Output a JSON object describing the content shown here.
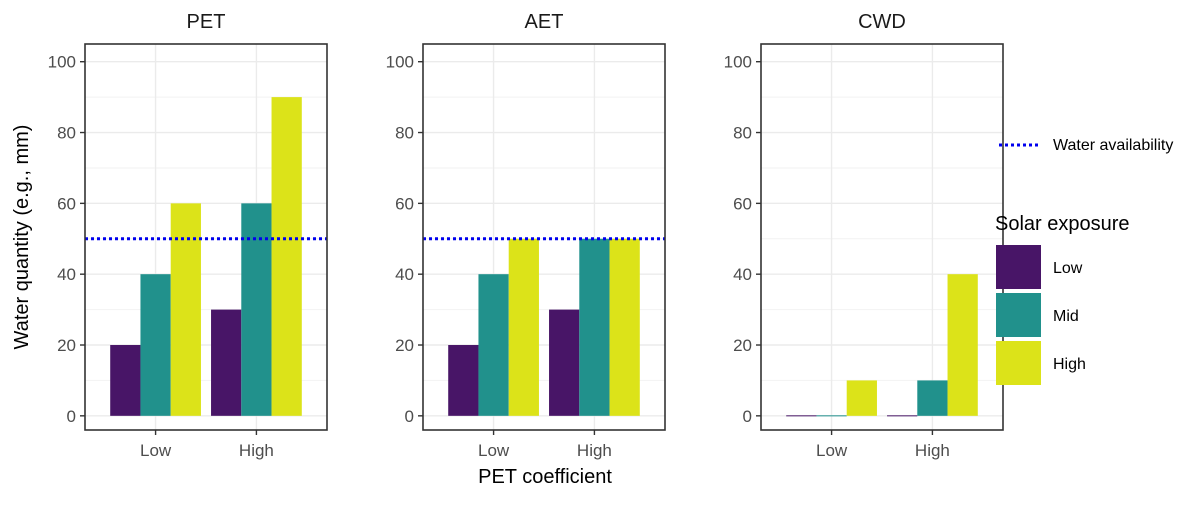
{
  "chart_data": {
    "type": "bar",
    "xlabel": "PET coefficient",
    "ylabel": "Water quantity (e.g., mm)",
    "ylim": [
      -4,
      105
    ],
    "yticks": [
      0,
      20,
      40,
      60,
      80,
      100
    ],
    "categories": [
      "Low",
      "High"
    ],
    "grid": true,
    "legend_placement": "right",
    "series_colors": [
      "#481567",
      "#21918C",
      "#DCE319"
    ],
    "reference_line": {
      "name": "Water availability",
      "value": 50,
      "color": "#0000EE",
      "style": "dotted"
    },
    "legend": {
      "line_label": "Water availability",
      "fill_title": "Solar exposure",
      "fill_entries": [
        "Low",
        "Mid",
        "High"
      ]
    },
    "panels": [
      {
        "title": "PET",
        "show_reference": true,
        "series": [
          {
            "name": "Low",
            "values": [
              20,
              30
            ]
          },
          {
            "name": "Mid",
            "values": [
              40,
              60
            ]
          },
          {
            "name": "High",
            "values": [
              60,
              90
            ]
          }
        ]
      },
      {
        "title": "AET",
        "show_reference": true,
        "series": [
          {
            "name": "Low",
            "values": [
              20,
              30
            ]
          },
          {
            "name": "Mid",
            "values": [
              40,
              50
            ]
          },
          {
            "name": "High",
            "values": [
              50,
              50
            ]
          }
        ]
      },
      {
        "title": "CWD",
        "show_reference": false,
        "series": [
          {
            "name": "Low",
            "values": [
              0,
              0
            ]
          },
          {
            "name": "Mid",
            "values": [
              0,
              10
            ]
          },
          {
            "name": "High",
            "values": [
              10,
              40
            ]
          }
        ]
      }
    ]
  }
}
